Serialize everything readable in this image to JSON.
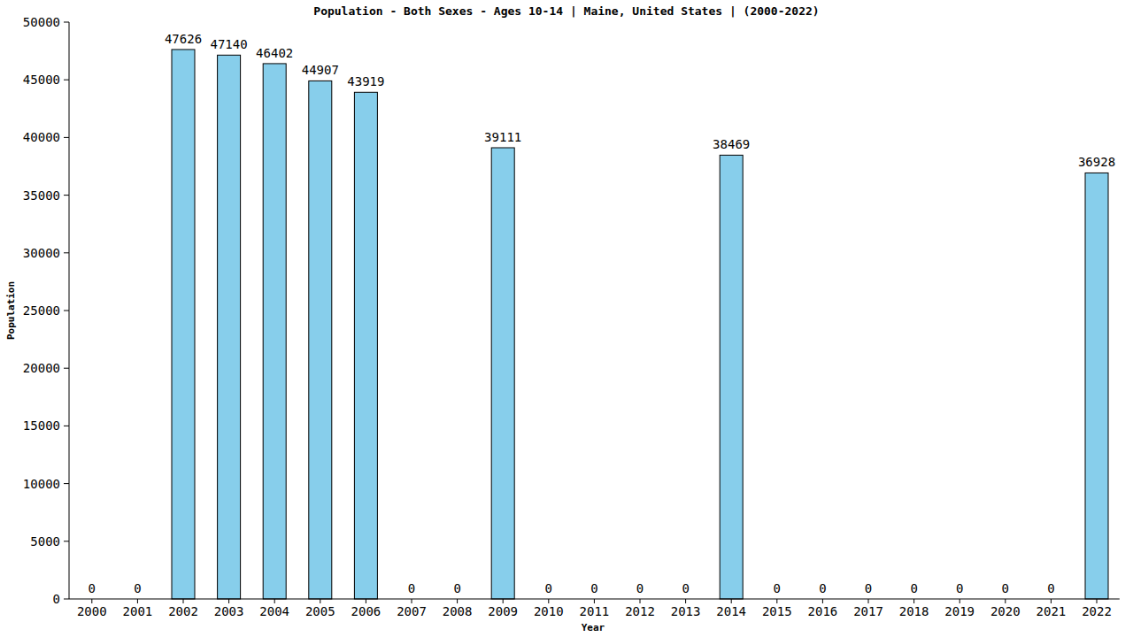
{
  "chart_data": {
    "type": "bar",
    "title": "Population - Both Sexes - Ages 10-14 | Maine, United States |  (2000-2022)",
    "x_label": "Year",
    "y_label": "Population",
    "categories": [
      "2000",
      "2001",
      "2002",
      "2003",
      "2004",
      "2005",
      "2006",
      "2007",
      "2008",
      "2009",
      "2010",
      "2011",
      "2012",
      "2013",
      "2014",
      "2015",
      "2016",
      "2017",
      "2018",
      "2019",
      "2020",
      "2021",
      "2022"
    ],
    "values": [
      0,
      0,
      47626,
      47140,
      46402,
      44907,
      43919,
      0,
      0,
      39111,
      0,
      0,
      0,
      0,
      38469,
      0,
      0,
      0,
      0,
      0,
      0,
      0,
      36928
    ],
    "color": "#87ceeb",
    "ylim": [
      0,
      50000
    ],
    "yticks": [
      0,
      5000,
      10000,
      15000,
      20000,
      25000,
      30000,
      35000,
      40000,
      45000,
      50000
    ],
    "grid": false,
    "data_labels": true
  }
}
